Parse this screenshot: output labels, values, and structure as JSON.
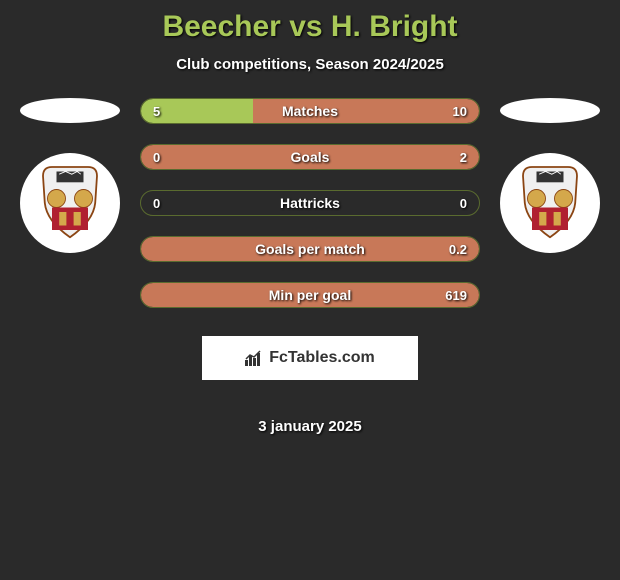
{
  "title": "Beecher vs H. Bright",
  "subtitle": "Club competitions, Season 2024/2025",
  "colors": {
    "background": "#2a2a2a",
    "accent_green": "#a8c858",
    "accent_orange": "#c87858",
    "bar_border": "#5a6b2f",
    "text_white": "#ffffff",
    "title_color": "#a8c858"
  },
  "stats": [
    {
      "label": "Matches",
      "left_value": "5",
      "right_value": "10",
      "left_pct": 33,
      "right_pct": 67
    },
    {
      "label": "Goals",
      "left_value": "0",
      "right_value": "2",
      "left_pct": 0,
      "right_pct": 100
    },
    {
      "label": "Hattricks",
      "left_value": "0",
      "right_value": "0",
      "left_pct": 0,
      "right_pct": 0
    },
    {
      "label": "Goals per match",
      "left_value": "",
      "right_value": "0.2",
      "left_pct": 0,
      "right_pct": 100
    },
    {
      "label": "Min per goal",
      "left_value": "",
      "right_value": "619",
      "left_pct": 0,
      "right_pct": 100
    }
  ],
  "logo_text": "FcTables.com",
  "date": "3 january 2025"
}
